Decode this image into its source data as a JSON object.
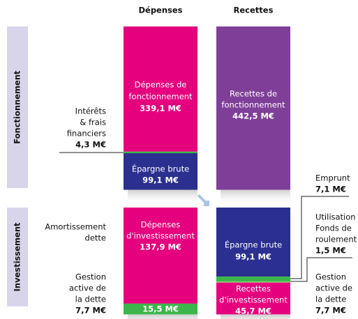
{
  "headers": [
    "Dépenses",
    "Recettes"
  ],
  "sections": [
    "Fonctionnement",
    "Investissement"
  ],
  "fonctionnement": {
    "depenses": {
      "label": [
        "Dépenses de",
        "fonctionnement"
      ],
      "value": 339.1,
      "value_label": "339,1 M€"
    },
    "interets": {
      "label": [
        "Intérêts",
        "& frais",
        "financiers"
      ],
      "value": 4.3,
      "value_label": "4,3 M€"
    },
    "epargne": {
      "label": [
        "Épargne brute"
      ],
      "value": 99.1,
      "value_label": "99,1 M€"
    },
    "recettes": {
      "label": [
        "Recettes de",
        "fonctionnement"
      ],
      "value": 442.5,
      "value_label": "442,5 M€"
    }
  },
  "investissement": {
    "amortissement": {
      "label": [
        "Amortissement",
        "dette"
      ]
    },
    "depenses": {
      "label": [
        "Dépenses",
        "d'investissement"
      ],
      "value": 137.9,
      "value_label": "137,9 M€"
    },
    "gestion_depenses": {
      "label": [
        "Gestion",
        "active de",
        "la dette"
      ],
      "value_label": "7,7 M€"
    },
    "vert_depenses": {
      "value": 15.5,
      "value_label": "15,5 M€"
    },
    "epargne": {
      "label": [
        "Épargne brute"
      ],
      "value": 99.1,
      "value_label": "99,1 M€"
    },
    "emprunt": {
      "label": [
        "Emprunt"
      ],
      "value": 7.1,
      "value_label": "7,1 M€"
    },
    "fonds": {
      "label": [
        "Utilisation",
        "Fonds de",
        "roulement"
      ],
      "value": 1.5,
      "value_label": "1,5 M€"
    },
    "recettes": {
      "label": [
        "Recettes",
        "d'investissement"
      ],
      "value": 45.7,
      "value_label": "45,7 M€"
    },
    "gestion_recettes": {
      "label": [
        "Gestion",
        "active de",
        "la dette"
      ],
      "value_label": "7,7 M€"
    }
  }
}
